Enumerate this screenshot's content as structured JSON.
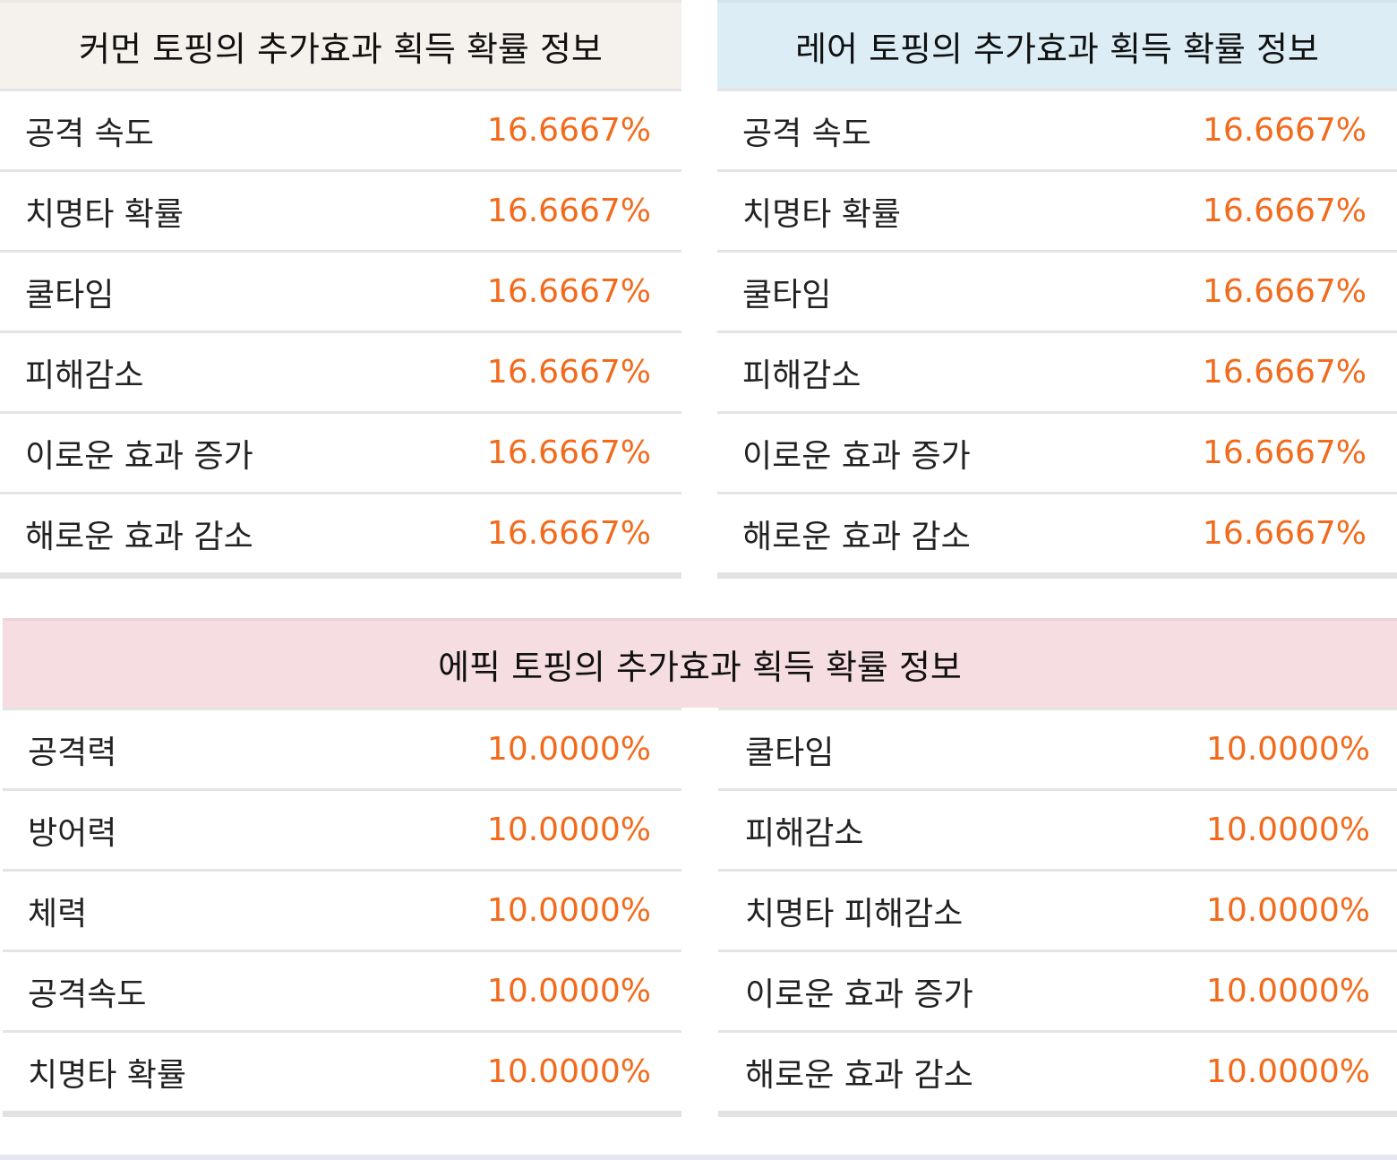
{
  "common": {
    "title": "커먼 토핑의 추가효과 획득 확률 정보",
    "header_color": "#f5f1ec",
    "rows": [
      {
        "label": "공격 속도",
        "value": "16.6667%"
      },
      {
        "label": "치명타 확률",
        "value": "16.6667%"
      },
      {
        "label": "쿨타임",
        "value": "16.6667%"
      },
      {
        "label": "피해감소",
        "value": "16.6667%"
      },
      {
        "label": "이로운 효과 증가",
        "value": "16.6667%"
      },
      {
        "label": "해로운 효과 감소",
        "value": "16.6667%"
      }
    ]
  },
  "rare": {
    "title": "레어 토핑의 추가효과 획득 확률 정보",
    "header_color": "#dcedf5",
    "rows": [
      {
        "label": "공격 속도",
        "value": "16.6667%"
      },
      {
        "label": "치명타 확률",
        "value": "16.6667%"
      },
      {
        "label": "쿨타임",
        "value": "16.6667%"
      },
      {
        "label": "피해감소",
        "value": "16.6667%"
      },
      {
        "label": "이로운 효과 증가",
        "value": "16.6667%"
      },
      {
        "label": "해로운 효과 감소",
        "value": "16.6667%"
      }
    ]
  },
  "epic": {
    "title": "에픽 토핑의 추가효과 획득 확률 정보",
    "header_color": "#f5dde2",
    "left_rows": [
      {
        "label": "공격력",
        "value": "10.0000%"
      },
      {
        "label": "방어력",
        "value": "10.0000%"
      },
      {
        "label": "체력",
        "value": "10.0000%"
      },
      {
        "label": "공격속도",
        "value": "10.0000%"
      },
      {
        "label": "치명타 확률",
        "value": "10.0000%"
      }
    ],
    "right_rows": [
      {
        "label": "쿨타임",
        "value": "10.0000%"
      },
      {
        "label": "피해감소",
        "value": "10.0000%"
      },
      {
        "label": "치명타 피해감소",
        "value": "10.0000%"
      },
      {
        "label": "이로운 효과 증가",
        "value": "10.0000%"
      },
      {
        "label": "해로운 효과 감소",
        "value": "10.0000%"
      }
    ]
  },
  "colors": {
    "value_text": "#f26b1d",
    "divider": "#e4e4e4"
  }
}
